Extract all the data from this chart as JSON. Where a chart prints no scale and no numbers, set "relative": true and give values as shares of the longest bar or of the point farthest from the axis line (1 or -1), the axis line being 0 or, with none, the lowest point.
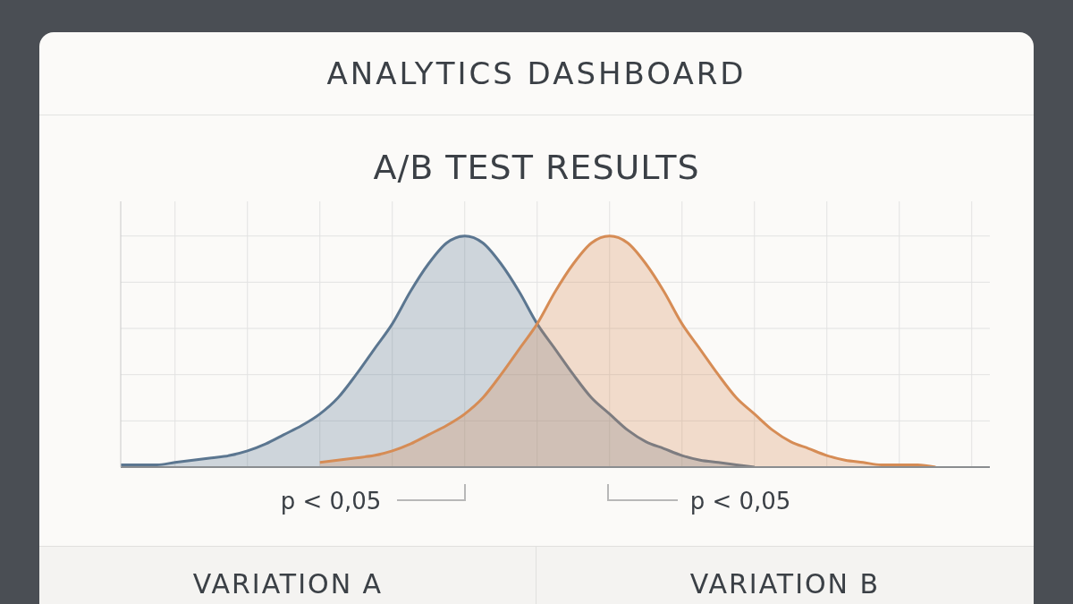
{
  "chart_data": {
    "type": "area",
    "title": "ANALYTICS DASHBOARD",
    "subtitle": "A/B TEST RESULTS",
    "relative": true,
    "grid": true,
    "categories": [
      null,
      null,
      null,
      null,
      null,
      null,
      null,
      null,
      null,
      null,
      null,
      null,
      null,
      null,
      null,
      null,
      null,
      null,
      null,
      null,
      null,
      null,
      null,
      null,
      null,
      null,
      null,
      null,
      null,
      null,
      null,
      null,
      null,
      null,
      null,
      null,
      null,
      null,
      null,
      null,
      null,
      null,
      null,
      null,
      null,
      null,
      null,
      null,
      null
    ],
    "series": [
      {
        "color": "#5b7690",
        "values": [
          0.01,
          0.01,
          0.01,
          0.02,
          0.03,
          0.04,
          0.05,
          0.07,
          0.1,
          0.14,
          0.18,
          0.23,
          0.3,
          0.4,
          0.51,
          0.62,
          0.76,
          0.88,
          0.97,
          1,
          0.97,
          0.88,
          0.76,
          0.62,
          0.51,
          0.4,
          0.3,
          0.23,
          0.16,
          0.11,
          0.08,
          0.05,
          0.03,
          0.02,
          0.01,
          0,
          null,
          null,
          null,
          null,
          null,
          null,
          null,
          null,
          null,
          null,
          null,
          null,
          null
        ]
      },
      {
        "color": "#d68c55",
        "values": [
          null,
          null,
          null,
          null,
          null,
          null,
          null,
          null,
          null,
          null,
          null,
          0.02,
          0.03,
          0.04,
          0.05,
          0.07,
          0.1,
          0.14,
          0.18,
          0.23,
          0.3,
          0.4,
          0.51,
          0.62,
          0.76,
          0.88,
          0.97,
          1,
          0.97,
          0.88,
          0.76,
          0.62,
          0.51,
          0.4,
          0.3,
          0.23,
          0.16,
          0.11,
          0.08,
          0.05,
          0.03,
          0.02,
          0.01,
          0.01,
          0.01,
          0,
          null,
          null,
          null
        ]
      }
    ],
    "annotations": [
      "p < 0,05",
      "p < 0,05",
      "VARIATION A",
      "VARIATION B"
    ]
  }
}
